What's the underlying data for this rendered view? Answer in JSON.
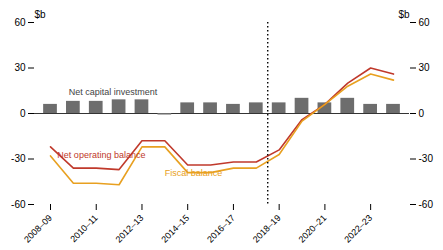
{
  "chart_data": {
    "type": "bar",
    "categories": [
      "2008–09",
      null,
      "2010–11",
      null,
      "2012–13",
      null,
      "2014–15",
      null,
      "2016–17",
      null,
      "2018–19",
      null,
      "2020–21",
      null,
      "2022–23",
      null
    ],
    "series": [
      {
        "name": "Net capital investment",
        "type": "bar",
        "color": "#6d6d6d",
        "label_color": "#444444",
        "label_x": 0.8,
        "label_y": 12,
        "values": [
          6,
          8,
          8,
          9,
          9,
          -1,
          7,
          7,
          6,
          7,
          7,
          10,
          7,
          10,
          6,
          6
        ]
      },
      {
        "name": "Net operating balance",
        "type": "line",
        "color": "#C0392B",
        "label_x": 0.3,
        "label_y": -25,
        "values": [
          -22,
          -36,
          -36,
          -37,
          -18,
          -18,
          -34,
          -34,
          -32,
          -32,
          -24,
          -4,
          6,
          20,
          30,
          26
        ]
      },
      {
        "name": "Fiscal balance",
        "type": "line",
        "color": "#E8A020",
        "label_x": 5.0,
        "label_y": -37,
        "values": [
          -28,
          -46,
          -46,
          -47,
          -22,
          -22,
          -39,
          -39,
          -36,
          -36,
          -27,
          -5,
          6,
          18,
          26,
          22
        ]
      }
    ],
    "vline": {
      "x": 9.5,
      "line_style": "dotted"
    },
    "ylabel": "$b",
    "ylim": [
      -60,
      60
    ],
    "yticks": [
      -60,
      -30,
      0,
      30,
      60
    ],
    "background_color": "#ffffff"
  }
}
